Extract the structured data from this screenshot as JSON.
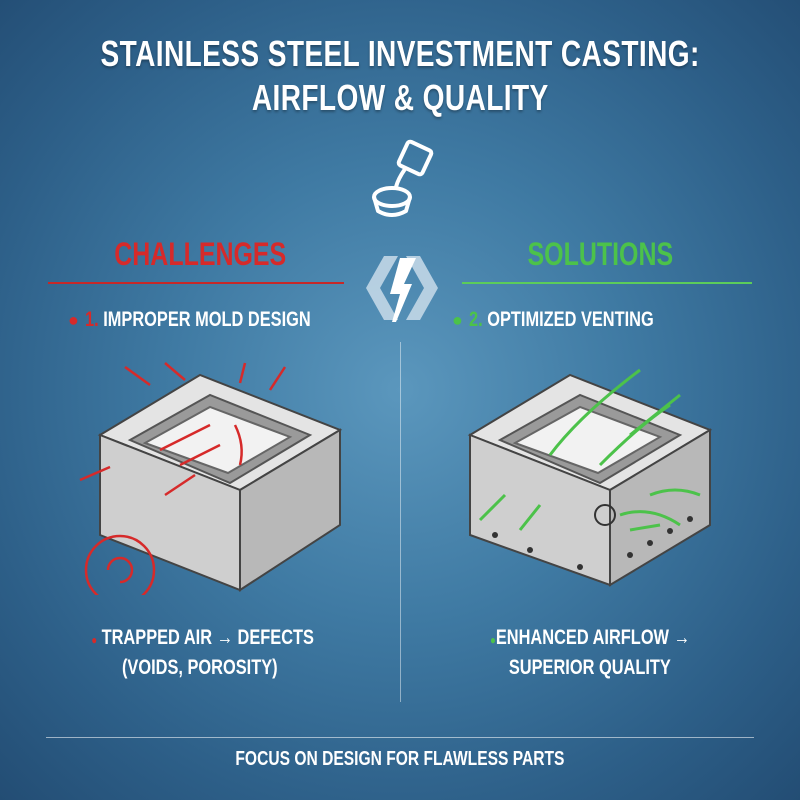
{
  "title": {
    "line1": "STAINLESS STEEL INVESTMENT CASTING:",
    "line2": "AIRFLOW & QUALITY"
  },
  "challenges": {
    "heading": "CHALLENGES",
    "item_number": "1.",
    "item_label": "IMPROPER MOLD DESIGN",
    "result_line1": "TRAPPED AIR → DEFECTS",
    "result_line2": "(VOIDS, POROSITY)",
    "color": "#d62a2a"
  },
  "solutions": {
    "heading": "SOLUTIONS",
    "item_number": "2.",
    "item_label": "OPTIMIZED VENTING",
    "result_line1": "ENHANCED AIRFLOW →",
    "result_line2": "SUPERIOR QUALITY",
    "color": "#4cc24a"
  },
  "footer": {
    "text": "FOCUS ON DESIGN FOR FLAWLESS PARTS"
  },
  "icons": {
    "top": "ladle-pouring-icon",
    "center": "exchange-arrows-icon"
  }
}
